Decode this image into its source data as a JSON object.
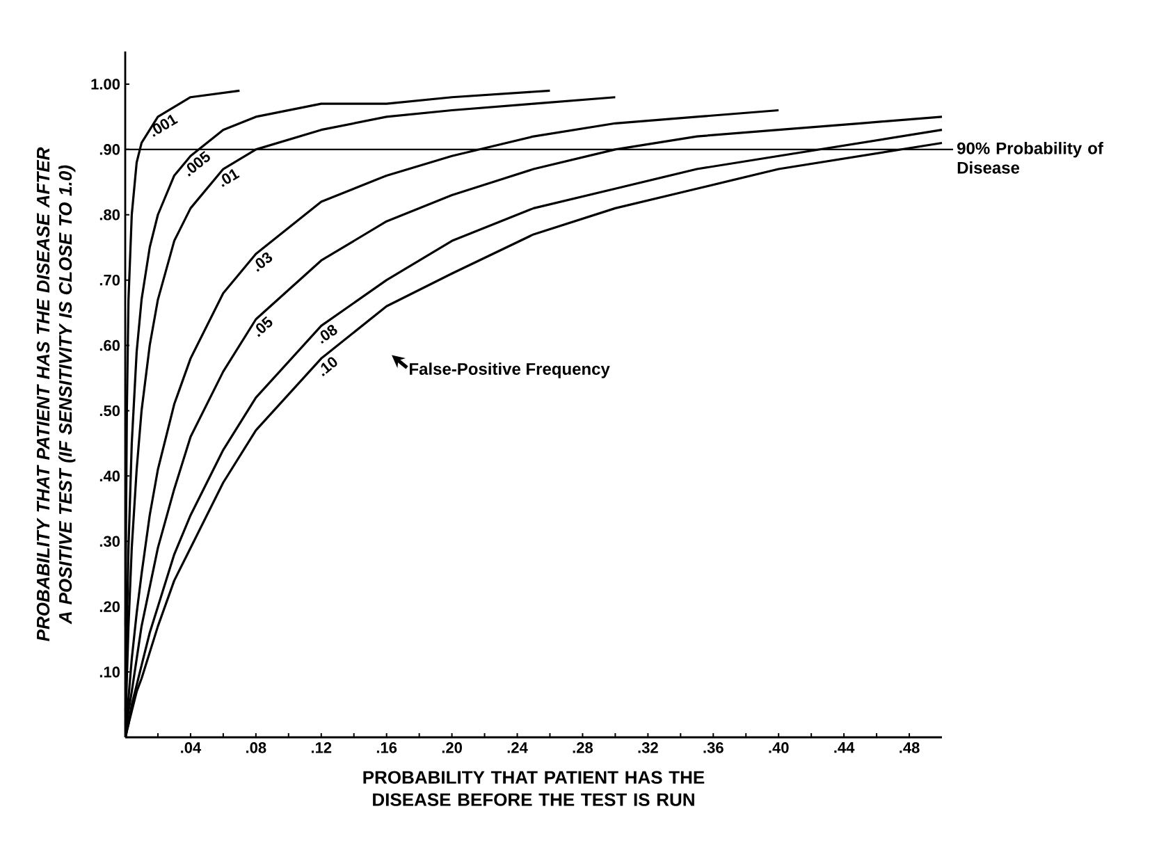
{
  "chart_data": {
    "type": "line",
    "xlabel": "PROBABILITY THAT PATIENT HAS THE DISEASE BEFORE THE TEST IS RUN",
    "ylabel": "PROBABILITY THAT PATIENT HAS THE DISEASE AFTER A POSITIVE TEST (IF SENSITIVITY IS CLOSE TO 1.0)",
    "xlim": [
      0,
      0.5
    ],
    "ylim": [
      0,
      1.05
    ],
    "xticks": [
      {
        "value": 0.02,
        "label": null
      },
      {
        "value": 0.04,
        "label": ".04"
      },
      {
        "value": 0.06,
        "label": null
      },
      {
        "value": 0.08,
        "label": ".08"
      },
      {
        "value": 0.1,
        "label": null
      },
      {
        "value": 0.12,
        "label": ".12"
      },
      {
        "value": 0.14,
        "label": null
      },
      {
        "value": 0.16,
        "label": ".16"
      },
      {
        "value": 0.18,
        "label": null
      },
      {
        "value": 0.2,
        "label": ".20"
      },
      {
        "value": 0.22,
        "label": null
      },
      {
        "value": 0.24,
        "label": ".24"
      },
      {
        "value": 0.26,
        "label": null
      },
      {
        "value": 0.28,
        "label": ".28"
      },
      {
        "value": 0.3,
        "label": null
      },
      {
        "value": 0.32,
        "label": ".32"
      },
      {
        "value": 0.34,
        "label": null
      },
      {
        "value": 0.36,
        "label": ".36"
      },
      {
        "value": 0.38,
        "label": null
      },
      {
        "value": 0.4,
        "label": ".40"
      },
      {
        "value": 0.42,
        "label": null
      },
      {
        "value": 0.44,
        "label": ".44"
      },
      {
        "value": 0.46,
        "label": null
      },
      {
        "value": 0.48,
        "label": ".48"
      }
    ],
    "yticks": [
      {
        "value": 0.1,
        "label": ".10"
      },
      {
        "value": 0.2,
        "label": ".20"
      },
      {
        "value": 0.3,
        "label": ".30"
      },
      {
        "value": 0.4,
        "label": ".40"
      },
      {
        "value": 0.5,
        "label": ".50"
      },
      {
        "value": 0.6,
        "label": ".60"
      },
      {
        "value": 0.7,
        "label": ".70"
      },
      {
        "value": 0.8,
        "label": ".80"
      },
      {
        "value": 0.9,
        "label": ".90"
      },
      {
        "value": 1.0,
        "label": "1.00"
      }
    ],
    "series": [
      {
        "name": ".001",
        "color": "#000000",
        "x": [
          0.0002,
          0.0005,
          0.001,
          0.002,
          0.004,
          0.007,
          0.01,
          0.02,
          0.04,
          0.07
        ],
        "values": [
          0.17,
          0.33,
          0.5,
          0.67,
          0.8,
          0.88,
          0.91,
          0.95,
          0.98,
          0.99
        ]
      },
      {
        "name": ".005",
        "color": "#000000",
        "x": [
          0.0002,
          0.001,
          0.002,
          0.004,
          0.007,
          0.01,
          0.015,
          0.02,
          0.03,
          0.04,
          0.06,
          0.08,
          0.12,
          0.16,
          0.2,
          0.26
        ],
        "values": [
          0.04,
          0.17,
          0.29,
          0.45,
          0.59,
          0.67,
          0.75,
          0.8,
          0.86,
          0.89,
          0.93,
          0.95,
          0.97,
          0.97,
          0.98,
          0.99
        ]
      },
      {
        "name": ".01",
        "color": "#000000",
        "x": [
          0.0002,
          0.001,
          0.002,
          0.004,
          0.007,
          0.01,
          0.015,
          0.02,
          0.03,
          0.04,
          0.06,
          0.08,
          0.12,
          0.16,
          0.2,
          0.25,
          0.3
        ],
        "values": [
          0.02,
          0.09,
          0.17,
          0.29,
          0.41,
          0.5,
          0.6,
          0.67,
          0.76,
          0.81,
          0.87,
          0.9,
          0.93,
          0.95,
          0.96,
          0.97,
          0.98
        ]
      },
      {
        "name": ".03",
        "color": "#000000",
        "x": [
          0.0002,
          0.001,
          0.002,
          0.004,
          0.007,
          0.01,
          0.015,
          0.02,
          0.03,
          0.04,
          0.06,
          0.08,
          0.12,
          0.16,
          0.2,
          0.25,
          0.3,
          0.35,
          0.4
        ],
        "values": [
          0.01,
          0.03,
          0.06,
          0.12,
          0.19,
          0.25,
          0.34,
          0.41,
          0.51,
          0.58,
          0.68,
          0.74,
          0.82,
          0.86,
          0.89,
          0.92,
          0.94,
          0.95,
          0.96
        ]
      },
      {
        "name": ".05",
        "color": "#000000",
        "x": [
          0.0002,
          0.001,
          0.002,
          0.004,
          0.007,
          0.01,
          0.015,
          0.02,
          0.03,
          0.04,
          0.06,
          0.08,
          0.12,
          0.16,
          0.2,
          0.25,
          0.3,
          0.35,
          0.4,
          0.45,
          0.5
        ],
        "values": [
          0.0,
          0.02,
          0.04,
          0.07,
          0.12,
          0.17,
          0.23,
          0.29,
          0.38,
          0.46,
          0.56,
          0.64,
          0.73,
          0.79,
          0.83,
          0.87,
          0.9,
          0.92,
          0.93,
          0.94,
          0.95
        ]
      },
      {
        "name": ".08",
        "color": "#000000",
        "x": [
          0.0002,
          0.001,
          0.002,
          0.004,
          0.007,
          0.01,
          0.015,
          0.02,
          0.03,
          0.04,
          0.06,
          0.08,
          0.12,
          0.16,
          0.2,
          0.25,
          0.3,
          0.35,
          0.4,
          0.45,
          0.5
        ],
        "values": [
          0.0,
          0.01,
          0.02,
          0.05,
          0.08,
          0.11,
          0.16,
          0.2,
          0.28,
          0.34,
          0.44,
          0.52,
          0.63,
          0.7,
          0.76,
          0.81,
          0.84,
          0.87,
          0.89,
          0.91,
          0.93
        ]
      },
      {
        "name": ".10",
        "color": "#000000",
        "x": [
          0.0002,
          0.001,
          0.002,
          0.004,
          0.007,
          0.01,
          0.015,
          0.02,
          0.03,
          0.04,
          0.06,
          0.08,
          0.12,
          0.16,
          0.2,
          0.25,
          0.3,
          0.35,
          0.4,
          0.45,
          0.5
        ],
        "values": [
          0.0,
          0.01,
          0.02,
          0.04,
          0.07,
          0.09,
          0.13,
          0.17,
          0.24,
          0.29,
          0.39,
          0.47,
          0.58,
          0.66,
          0.71,
          0.77,
          0.81,
          0.84,
          0.87,
          0.89,
          0.91
        ]
      }
    ],
    "ref_lines": [
      {
        "axis": "y",
        "value": 0.9,
        "label": "90% Probability of Disease",
        "color": "#000000"
      }
    ],
    "annotations": [
      "False-Positive Frequency"
    ]
  }
}
